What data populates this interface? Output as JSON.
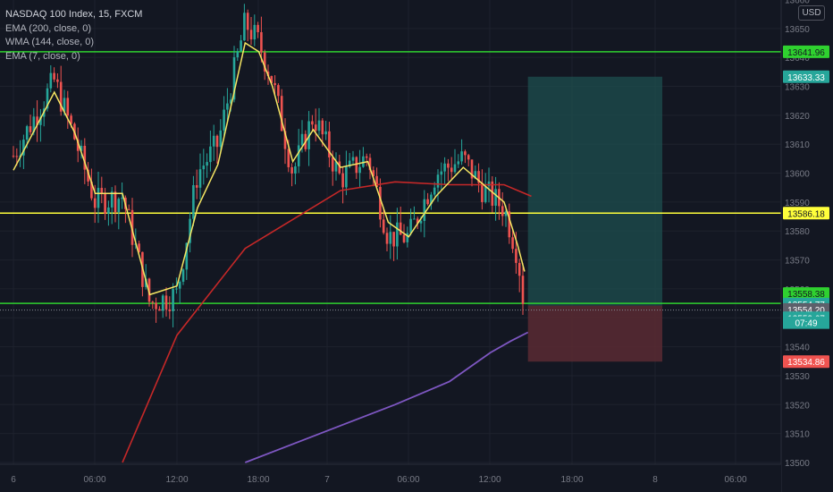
{
  "header": {
    "symbol_title": "NASDAQ 100 Index, 15, FXCM",
    "indicators": [
      "EMA (200, close, 0)",
      "WMA (144, close, 0)",
      "EMA (7, close, 0)"
    ],
    "currency_button": "USD"
  },
  "colors": {
    "background": "#131722",
    "grid": "#1e222d",
    "axis_text": "#787b86",
    "candle_up": "#26a69a",
    "candle_down": "#ef5350",
    "ema7": "#f5e663",
    "ema200": "#7e57c2",
    "wma144": "#c62828",
    "level_green": "#2fd12f",
    "level_yellow": "#ffff3b",
    "target_zone": "#1e4f4f",
    "stop_zone": "#5b2a33"
  },
  "chart_data": {
    "type": "candlestick",
    "ylim": [
      13500,
      13666
    ],
    "y_ticks": [
      13500,
      13510,
      13520,
      13530,
      13540,
      13550,
      13560,
      13570,
      13580,
      13590,
      13600,
      13610,
      13620,
      13630,
      13640,
      13650,
      13660
    ],
    "x_ticks": [
      "6",
      "06:00",
      "12:00",
      "18:00",
      "7",
      "06:00",
      "12:00",
      "18:00",
      "8",
      "06:00"
    ],
    "last_close": 13552.67,
    "countdown": "07:49",
    "horizontal_levels": [
      {
        "price": 13641.96,
        "color": "#2fd12f"
      },
      {
        "price": 13586.18,
        "color": "#ffff3b"
      },
      {
        "price": 13555.0,
        "color": "#2fd12f"
      }
    ],
    "price_labels": [
      {
        "text": "13641.96",
        "price": 13641.96,
        "bg": "#2fd12f",
        "fg": "#131722"
      },
      {
        "text": "13633.33",
        "price": 13633.33,
        "bg": "#26a69a",
        "fg": "#ffffff"
      },
      {
        "text": "13586.18",
        "price": 13586.18,
        "bg": "#ffff3b",
        "fg": "#131722"
      },
      {
        "text": "13558.38",
        "price": 13558.38,
        "bg": "#2fd12f",
        "fg": "#131722"
      },
      {
        "text": "13554.77",
        "price": 13554.77,
        "bg": "#26a69a",
        "fg": "#ffffff"
      },
      {
        "text": "13554.20",
        "price": 13552.9,
        "bg": "#5d606b",
        "fg": "#ffffff"
      },
      {
        "text": "13552.67",
        "price": 13550.0,
        "bg": "#26a69a",
        "fg": "#ffffff"
      },
      {
        "text": "13534.86",
        "price": 13534.86,
        "bg": "#ef5350",
        "fg": "#ffffff"
      }
    ],
    "position": {
      "entry": 13554.2,
      "target": 13633.33,
      "stop": 13534.86,
      "start_time": "7 13:45",
      "end_time": "8 00:00"
    },
    "candle_series": [
      {
        "t": "6 00:00",
        "close": 13606,
        "ema7": 13601
      },
      {
        "t": "6 03:00",
        "close": 13632,
        "ema7": 13628
      },
      {
        "t": "6 04:30",
        "close": 13612,
        "ema7": 13614
      },
      {
        "t": "6 06:00",
        "close": 13590,
        "ema7": 13593
      },
      {
        "t": "6 08:00",
        "close": 13592,
        "ema7": 13593
      },
      {
        "t": "6 10:00",
        "close": 13555,
        "ema7": 13558
      },
      {
        "t": "6 12:00",
        "close": 13558,
        "ema7": 13561
      },
      {
        "t": "6 13:30",
        "close": 13600,
        "ema7": 13588
      },
      {
        "t": "6 15:00",
        "close": 13610,
        "ema7": 13603
      },
      {
        "t": "6 17:00",
        "close": 13652,
        "ema7": 13645
      },
      {
        "t": "6 18:00",
        "close": 13645,
        "ema7": 13642
      },
      {
        "t": "6 19:00",
        "close": 13632,
        "ema7": 13630
      },
      {
        "t": "6 20:30",
        "close": 13600,
        "ema7": 13604
      },
      {
        "t": "6 22:00",
        "close": 13620,
        "ema7": 13615
      },
      {
        "t": "7 00:00",
        "close": 13598,
        "ema7": 13602
      },
      {
        "t": "7 02:00",
        "close": 13606,
        "ema7": 13604
      },
      {
        "t": "7 03:30",
        "close": 13578,
        "ema7": 13583
      },
      {
        "t": "7 05:00",
        "close": 13578,
        "ema7": 13578
      },
      {
        "t": "7 07:00",
        "close": 13600,
        "ema7": 13592
      },
      {
        "t": "7 09:00",
        "close": 13605,
        "ema7": 13602
      },
      {
        "t": "7 10:30",
        "close": 13594,
        "ema7": 13596
      },
      {
        "t": "7 12:00",
        "close": 13588,
        "ema7": 13590
      },
      {
        "t": "7 13:00",
        "close": 13572,
        "ema7": 13575
      },
      {
        "t": "7 13:30",
        "close": 13552.67,
        "ema7": 13566
      }
    ],
    "wma144": [
      {
        "t": "6 08:00",
        "v": 13500
      },
      {
        "t": "6 12:00",
        "v": 13544
      },
      {
        "t": "6 17:00",
        "v": 13574
      },
      {
        "t": "7 00:00",
        "v": 13594
      },
      {
        "t": "7 04:00",
        "v": 13597
      },
      {
        "t": "7 08:00",
        "v": 13596
      },
      {
        "t": "7 12:00",
        "v": 13596
      },
      {
        "t": "7 14:00",
        "v": 13592
      }
    ],
    "ema200": [
      {
        "t": "6 17:00",
        "v": 13500
      },
      {
        "t": "7 04:00",
        "v": 13520
      },
      {
        "t": "7 08:00",
        "v": 13528
      },
      {
        "t": "7 11:00",
        "v": 13538
      },
      {
        "t": "7 12:30",
        "v": 13542
      },
      {
        "t": "7 13:45",
        "v": 13545
      }
    ]
  }
}
